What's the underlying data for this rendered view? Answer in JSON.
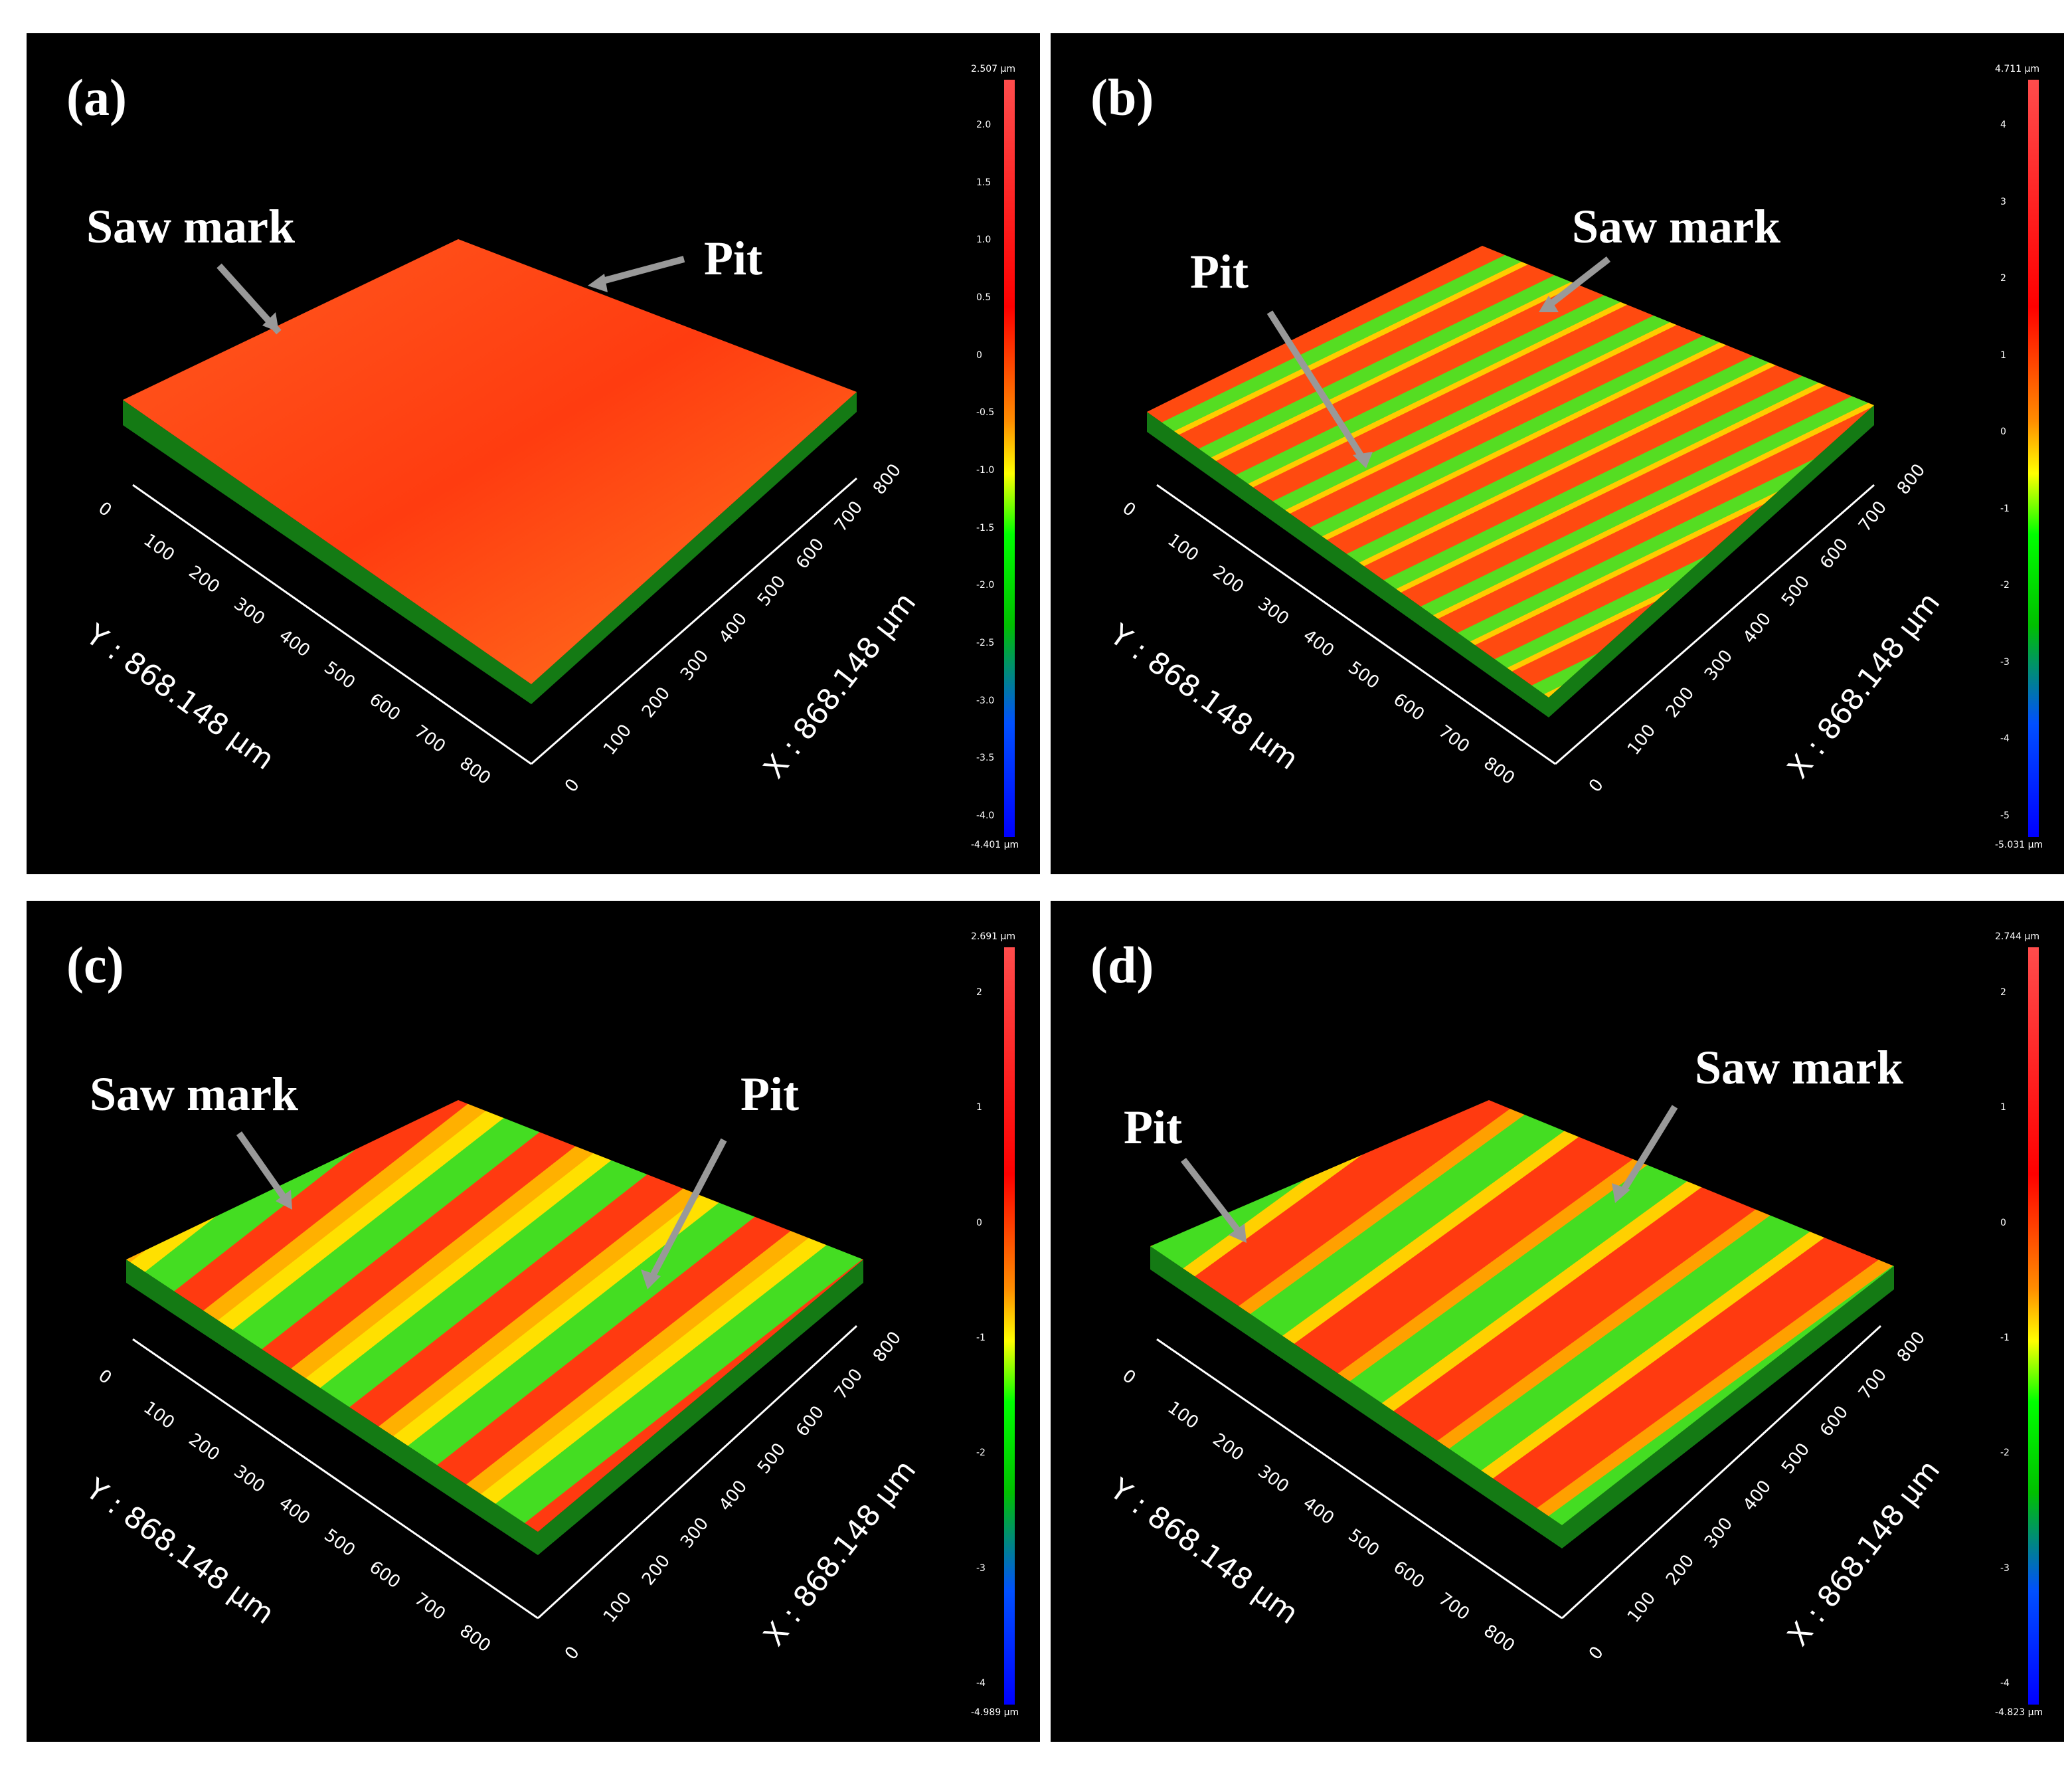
{
  "panels": [
    {
      "label": "(a)",
      "annotations": {
        "saw_mark": "Saw mark",
        "pit": "Pit"
      },
      "axes": {
        "y_title": "Y : 868.148 µm",
        "x_title": "X : 868.148 µm",
        "y_ticks": [
          "0",
          "100",
          "200",
          "300",
          "400",
          "500",
          "600",
          "700",
          "800"
        ],
        "x_ticks": [
          "0",
          "100",
          "200",
          "300",
          "400",
          "500",
          "600",
          "700",
          "800"
        ]
      },
      "colorbar": {
        "max": "2.507 µm",
        "min": "-4.401 µm",
        "ticks": [
          "2.0",
          "1.5",
          "1.0",
          "0.5",
          "0",
          "-0.5",
          "-1.0",
          "-1.5",
          "-2.0",
          "-2.5",
          "-3.0",
          "-3.5",
          "-4.0"
        ]
      }
    },
    {
      "label": "(b)",
      "annotations": {
        "saw_mark": "Saw mark",
        "pit": "Pit"
      },
      "axes": {
        "y_title": "Y : 868.148 µm",
        "x_title": "X : 868.148 µm",
        "y_ticks": [
          "0",
          "100",
          "200",
          "300",
          "400",
          "500",
          "600",
          "700",
          "800"
        ],
        "x_ticks": [
          "0",
          "100",
          "200",
          "300",
          "400",
          "500",
          "600",
          "700",
          "800"
        ]
      },
      "colorbar": {
        "max": "4.711 µm",
        "min": "-5.031 µm",
        "ticks": [
          "4",
          "3",
          "2",
          "1",
          "0",
          "-1",
          "-2",
          "-3",
          "-4",
          "-5"
        ]
      }
    },
    {
      "label": "(c)",
      "annotations": {
        "saw_mark": "Saw mark",
        "pit": "Pit"
      },
      "axes": {
        "y_title": "Y : 868.148 µm",
        "x_title": "X : 868.148 µm",
        "y_ticks": [
          "0",
          "100",
          "200",
          "300",
          "400",
          "500",
          "600",
          "700",
          "800"
        ],
        "x_ticks": [
          "0",
          "100",
          "200",
          "300",
          "400",
          "500",
          "600",
          "700",
          "800"
        ]
      },
      "colorbar": {
        "max": "2.691 µm",
        "min": "-4.989 µm",
        "ticks": [
          "2",
          "1",
          "0",
          "-1",
          "-2",
          "-3",
          "-4"
        ]
      }
    },
    {
      "label": "(d)",
      "annotations": {
        "saw_mark": "Saw mark",
        "pit": "Pit"
      },
      "axes": {
        "y_title": "Y : 868.148 µm",
        "x_title": "X : 868.148 µm",
        "y_ticks": [
          "0",
          "100",
          "200",
          "300",
          "400",
          "500",
          "600",
          "700",
          "800"
        ],
        "x_ticks": [
          "0",
          "100",
          "200",
          "300",
          "400",
          "500",
          "600",
          "700",
          "800"
        ]
      },
      "colorbar": {
        "max": "2.744 µm",
        "min": "-4.823 µm",
        "ticks": [
          "2",
          "1",
          "0",
          "-1",
          "-2",
          "-3",
          "-4"
        ]
      }
    }
  ]
}
